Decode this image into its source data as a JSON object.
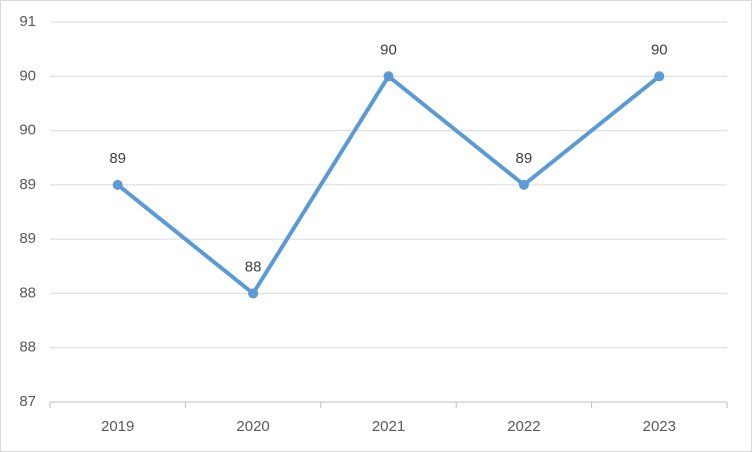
{
  "chart_data": {
    "type": "line",
    "categories": [
      "2019",
      "2020",
      "2021",
      "2022",
      "2023"
    ],
    "values": [
      89,
      88,
      90,
      89,
      90
    ],
    "color": "#5b9bd5",
    "ylim": [
      87,
      90.5
    ],
    "yticks": [
      87,
      {
        "value": 87.5,
        "label": "88"
      },
      88,
      {
        "value": 88.5,
        "label": "89"
      },
      89,
      {
        "value": 89.5,
        "label": "90"
      },
      90,
      {
        "value": 90.5,
        "label": "91"
      }
    ],
    "grid": true
  }
}
